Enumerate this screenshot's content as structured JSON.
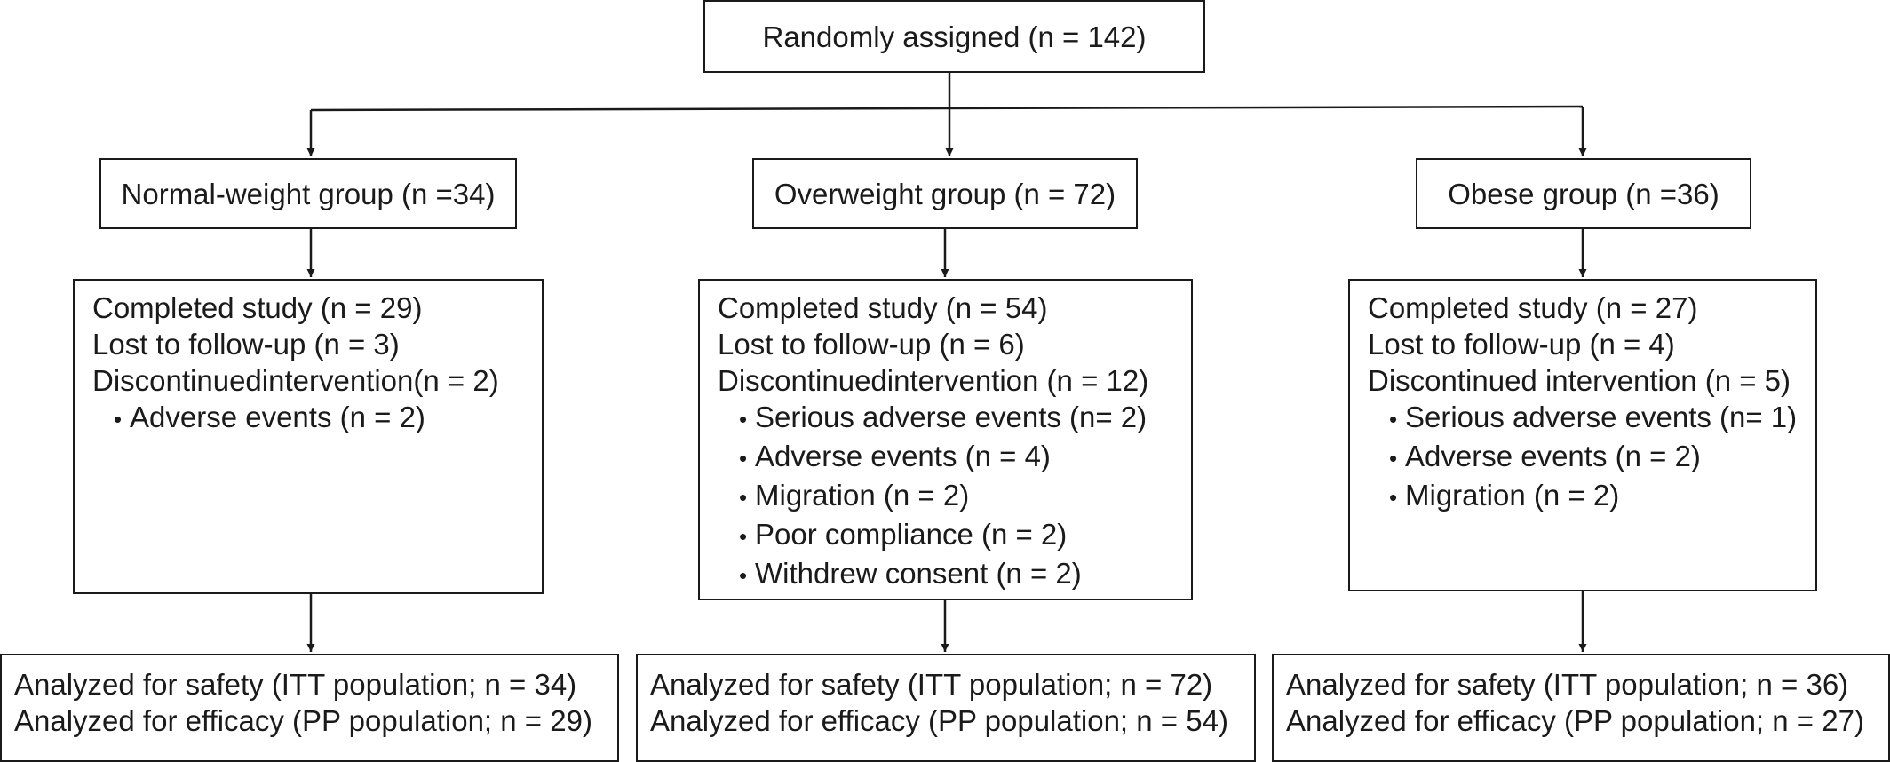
{
  "top": {
    "label": "Randomly assigned (n = 142)"
  },
  "groups": [
    {
      "label": "Normal-weight group (n =34)",
      "completed": "Completed study (n = 29)",
      "lost": "Lost to follow-up (n = 3)",
      "discontinued": "Discontinuedintervention(n = 2)",
      "reasons": [
        "Adverse events (n = 2)"
      ],
      "safety": "Analyzed for safety (ITT population; n = 34)",
      "efficacy": "Analyzed for efficacy (PP population; n = 29)"
    },
    {
      "label": "Overweight group (n = 72)",
      "completed": "Completed study (n = 54)",
      "lost": "Lost to follow-up (n = 6)",
      "discontinued": "Discontinuedintervention (n =  12)",
      "reasons": [
        "Serious adverse events (n= 2)",
        "Adverse events (n = 4)",
        "Migration (n = 2)",
        "Poor compliance (n = 2)",
        "Withdrew consent (n = 2)"
      ],
      "safety": "Analyzed for safety (ITT population; n = 72)",
      "efficacy": "Analyzed for efficacy (PP population; n = 54)"
    },
    {
      "label": "Obese group (n =36)",
      "completed": "Completed study (n = 27)",
      "lost": "Lost to follow-up (n = 4)",
      "discontinued": "Discontinued intervention (n = 5)",
      "reasons": [
        "Serious adverse events (n= 1)",
        "Adverse events (n = 2)",
        "Migration (n = 2)"
      ],
      "safety": "Analyzed for safety (ITT population; n = 36)",
      "efficacy": "Analyzed for efficacy (PP population; n = 27)"
    }
  ]
}
